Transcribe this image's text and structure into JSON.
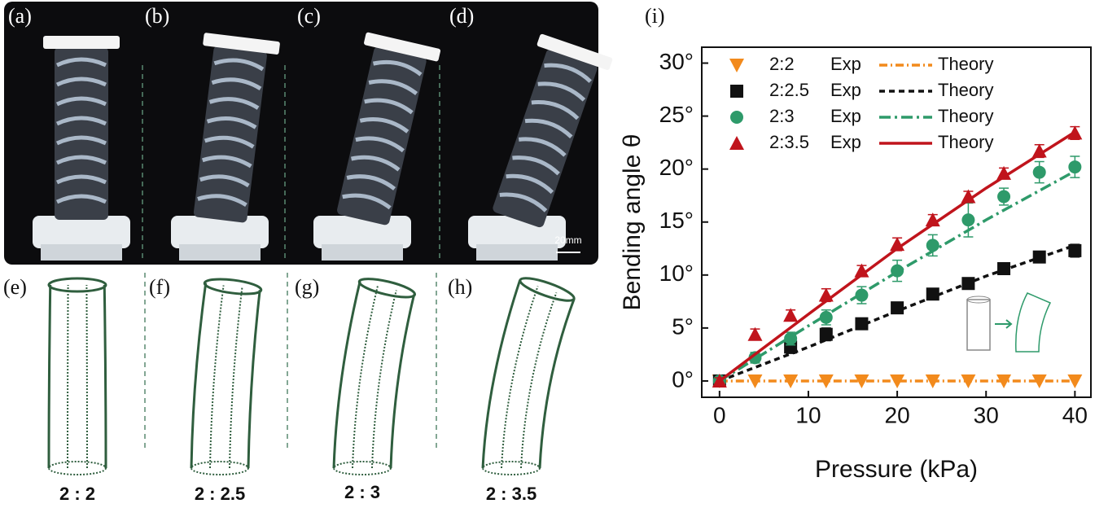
{
  "panels": {
    "labels": [
      "(a)",
      "(b)",
      "(c)",
      "(d)",
      "(e)",
      "(f)",
      "(g)",
      "(h)",
      "(i)"
    ],
    "scale_bar": "20mm",
    "ratios": [
      "2 : 2",
      "2 : 2.5",
      "2 : 3",
      "2 : 3.5"
    ]
  },
  "chart_data": {
    "type": "scatter-line",
    "x_label": "Pressure (kPa)",
    "y_label": "Bending angle θ",
    "xlim": [
      -2,
      41.8
    ],
    "ylim": [
      -1.54,
      31.5
    ],
    "xticks": [
      0,
      10,
      20,
      30,
      40
    ],
    "yticks": [
      {
        "value": 0,
        "label": "0°"
      },
      {
        "value": 5,
        "label": "5°"
      },
      {
        "value": 10,
        "label": "10°"
      },
      {
        "value": 15,
        "label": "15°"
      },
      {
        "value": 20,
        "label": "20°"
      },
      {
        "value": 25,
        "label": "25°"
      },
      {
        "value": 30,
        "label": "30°"
      }
    ],
    "series": [
      {
        "name": "2:2",
        "exp_label": "Exp",
        "theory_label": "Theory",
        "color": "#f28a1c",
        "marker": "triangle-down",
        "dash": "10 4 2 4",
        "x": [
          0,
          4,
          8,
          12,
          16,
          20,
          24,
          28,
          32,
          36,
          40
        ],
        "values": [
          0,
          0,
          0,
          0,
          0,
          0,
          0,
          0,
          0,
          0,
          0
        ],
        "theory_x": [
          0,
          10,
          20,
          30,
          40
        ],
        "theory_values": [
          0,
          0,
          0,
          0,
          0
        ]
      },
      {
        "name": "2:2.5",
        "exp_label": "Exp",
        "theory_label": "Theory",
        "color": "#111111",
        "marker": "square",
        "dash": "7 5",
        "x": [
          0,
          8,
          12,
          16,
          20,
          24,
          28,
          32,
          36,
          40
        ],
        "values": [
          0,
          3.2,
          4.4,
          5.4,
          6.9,
          8.2,
          9.2,
          10.6,
          11.7,
          12.3
        ],
        "errors": [
          0.3,
          0.6,
          0.6,
          0.4,
          0.4,
          0.4,
          0.4,
          0.4,
          0.5,
          0.6
        ],
        "theory_x": [
          0,
          10,
          20,
          30,
          40
        ],
        "theory_values": [
          0,
          3.2,
          6.6,
          9.9,
          12.8
        ]
      },
      {
        "name": "2:3",
        "exp_label": "Exp",
        "theory_label": "Theory",
        "color": "#2e9a6a",
        "marker": "circle",
        "dash": "14 5 3 5",
        "x": [
          0,
          4,
          8,
          12,
          16,
          20,
          24,
          28,
          32,
          36,
          40
        ],
        "values": [
          0,
          2.2,
          4.0,
          6.0,
          8.1,
          10.4,
          12.8,
          15.2,
          17.4,
          19.7,
          20.2
        ],
        "errors": [
          0.3,
          0.5,
          0.6,
          0.7,
          0.8,
          1.0,
          1.0,
          1.6,
          0.8,
          1.0,
          1.0
        ],
        "theory_x": [
          0,
          10,
          20,
          30,
          40
        ],
        "theory_values": [
          0,
          5.2,
          10.3,
          15.2,
          19.8
        ]
      },
      {
        "name": "2:3.5",
        "exp_label": "Exp",
        "theory_label": "Theory",
        "color": "#c0141c",
        "marker": "triangle-up",
        "dash": "",
        "x": [
          0,
          4,
          8,
          12,
          16,
          20,
          24,
          28,
          32,
          36,
          40
        ],
        "values": [
          0,
          4.4,
          6.2,
          8.1,
          10.4,
          12.9,
          15.2,
          17.4,
          19.6,
          21.7,
          23.4
        ],
        "errors": [
          0.3,
          0.5,
          0.5,
          0.6,
          0.5,
          0.6,
          0.5,
          0.5,
          0.5,
          0.6,
          0.6
        ],
        "theory_x": [
          0,
          10,
          20,
          30,
          40
        ],
        "theory_values": [
          0,
          6.3,
          12.5,
          18.2,
          23.5
        ]
      }
    ]
  }
}
